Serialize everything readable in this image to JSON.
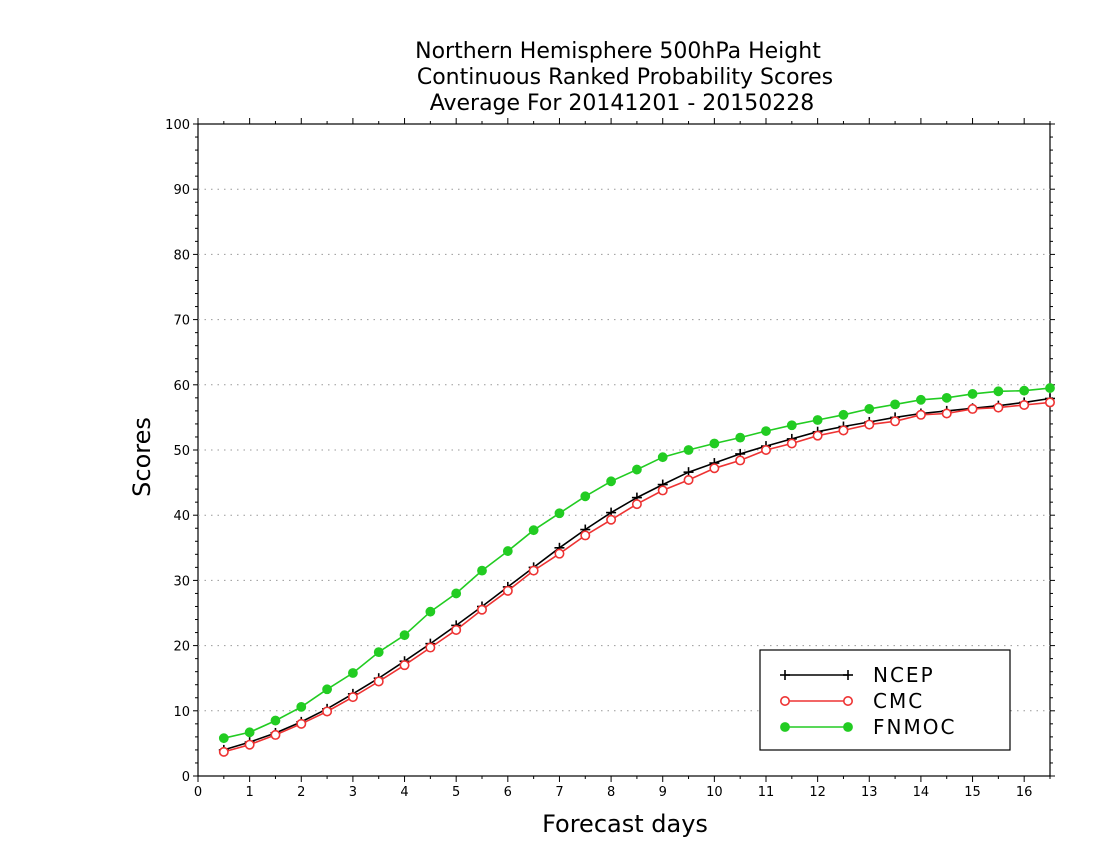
{
  "chart_data": {
    "type": "line",
    "title": [
      "Northern Hemisphere 500hPa Height",
      "Continuous Ranked Probability Scores",
      "Average For 20141201 - 20150228"
    ],
    "xlabel": "Forecast days",
    "ylabel": "Scores",
    "xlim": [
      0,
      16.5
    ],
    "ylim": [
      0,
      100
    ],
    "xticks": [
      0,
      1,
      2,
      3,
      4,
      5,
      6,
      7,
      8,
      9,
      10,
      11,
      12,
      13,
      14,
      15,
      16
    ],
    "yticks": [
      0,
      10,
      20,
      30,
      40,
      50,
      60,
      70,
      80,
      90,
      100
    ],
    "grid": "horizontal dotted",
    "legend_position": "bottom-right",
    "x": [
      0.5,
      1,
      1.5,
      2,
      2.5,
      3,
      3.5,
      4,
      4.5,
      5,
      5.5,
      6,
      6.5,
      7,
      7.5,
      8,
      8.5,
      9,
      9.5,
      10,
      10.5,
      11,
      11.5,
      12,
      12.5,
      13,
      13.5,
      14,
      14.5,
      15,
      15.5,
      16,
      16.5
    ],
    "series": [
      {
        "name": "NCEP",
        "color": "#000000",
        "marker": "plus",
        "values": [
          4.0,
          5.2,
          6.6,
          8.3,
          10.3,
          12.6,
          15.0,
          17.6,
          20.3,
          23.1,
          26.0,
          29.0,
          32.0,
          35.0,
          37.8,
          40.4,
          42.7,
          44.7,
          46.6,
          48.0,
          49.4,
          50.6,
          51.7,
          52.8,
          53.6,
          54.3,
          55.0,
          55.6,
          56.0,
          56.4,
          56.8,
          57.3,
          57.9
        ]
      },
      {
        "name": "CMC",
        "color": "#ee3333",
        "marker": "open-circle",
        "values": [
          3.7,
          4.8,
          6.3,
          8.0,
          9.9,
          12.1,
          14.5,
          17.0,
          19.7,
          22.4,
          25.5,
          28.4,
          31.5,
          34.1,
          36.9,
          39.3,
          41.7,
          43.8,
          45.4,
          47.2,
          48.4,
          50.0,
          51.0,
          52.2,
          53.0,
          53.9,
          54.4,
          55.4,
          55.6,
          56.3,
          56.5,
          56.9,
          57.3
        ]
      },
      {
        "name": "FNMOC",
        "color": "#22cc22",
        "marker": "filled-circle",
        "values": [
          5.8,
          6.7,
          8.5,
          10.6,
          13.3,
          15.8,
          19.0,
          21.6,
          25.2,
          28.0,
          31.5,
          34.5,
          37.7,
          40.3,
          42.9,
          45.2,
          47.0,
          48.9,
          50.0,
          51.0,
          51.9,
          52.9,
          53.8,
          54.6,
          55.4,
          56.3,
          57.0,
          57.7,
          58.0,
          58.6,
          59.0,
          59.1,
          59.5
        ]
      }
    ]
  }
}
